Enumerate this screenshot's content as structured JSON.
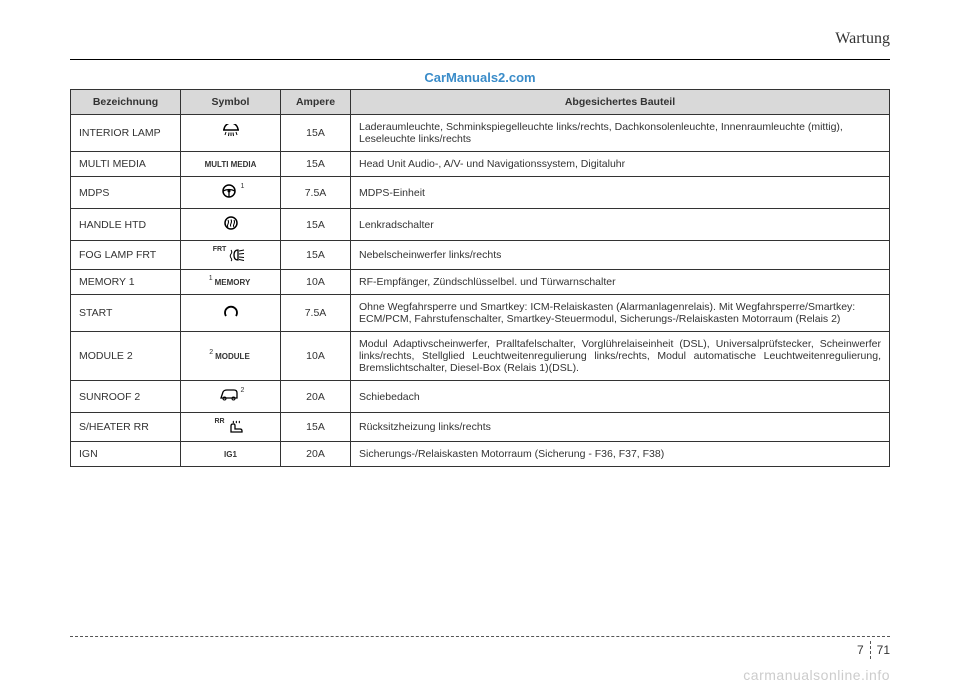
{
  "header": {
    "section": "Wartung"
  },
  "watermark": {
    "top": "CarManuals2.com",
    "bottom": "carmanualsonline.info"
  },
  "footer": {
    "chapter": "7",
    "page": "71"
  },
  "table": {
    "headers": {
      "name": "Bezeichnung",
      "symbol": "Symbol",
      "ampere": "Ampere",
      "component": "Abgesichertes Bauteil"
    },
    "rows": [
      {
        "name": "INTERIOR LAMP",
        "symbol_type": "svg_dome",
        "symbol_text": "",
        "ampere": "15A",
        "desc": "Laderaumleuchte, Schminkspiegelleuchte links/rechts, Dachkonsolenleuchte, Innenraumleuchte (mittig), Leseleuchte links/rechts",
        "justify": false
      },
      {
        "name": "MULTI MEDIA",
        "symbol_type": "text",
        "symbol_text": "MULTI MEDIA",
        "ampere": "15A",
        "desc": "Head Unit Audio-, A/V- und Navigationssystem, Digitaluhr",
        "justify": false
      },
      {
        "name": "MDPS",
        "symbol_type": "svg_steer",
        "symbol_text": "",
        "sup": "1",
        "ampere": "7.5A",
        "desc": "MDPS-Einheit",
        "justify": false
      },
      {
        "name": "HANDLE HTD",
        "symbol_type": "svg_heat_wheel",
        "symbol_text": "",
        "ampere": "15A",
        "desc": "Lenkradschalter",
        "justify": false
      },
      {
        "name": "FOG LAMP FRT",
        "symbol_type": "svg_fog",
        "symbol_text": "",
        "pre": "FRT",
        "ampere": "15A",
        "desc": "Nebelscheinwerfer links/rechts",
        "justify": false
      },
      {
        "name": "MEMORY 1",
        "symbol_type": "text_sup",
        "symbol_text": "MEMORY",
        "sup": "1",
        "ampere": "10A",
        "desc": "RF-Empfänger, Zündschlüsselbel. und Türwarnschalter",
        "justify": false
      },
      {
        "name": "START",
        "symbol_type": "svg_ring",
        "symbol_text": "",
        "ampere": "7.5A",
        "desc": "Ohne Wegfahrsperre und Smartkey: ICM-Relaiskasten (Alarmanlagenrelais). Mit Wegfahrsperre/Smartkey: ECM/PCM, Fahrstufenschalter, Smartkey-Steuermodul, Sicherungs-/Relaiskasten Motorraum (Relais 2)",
        "justify": false
      },
      {
        "name": "MODULE 2",
        "symbol_type": "text_sup",
        "symbol_text": "MODULE",
        "sup": "2",
        "ampere": "10A",
        "desc": "Modul Adaptivscheinwerfer, Pralltafelschalter, Vorglührelaiseinheit (DSL), Universalprüfstecker, Scheinwerfer links/rechts, Stellglied Leuchtweitenregulierung links/rechts, Modul automatische Leuchtweitenregulierung, Bremslichtschalter, Diesel-Box (Relais 1)(DSL).",
        "justify": true
      },
      {
        "name": "SUNROOF 2",
        "symbol_type": "svg_car",
        "symbol_text": "",
        "sup": "2",
        "ampere": "20A",
        "desc": "Schiebedach",
        "justify": false
      },
      {
        "name": "S/HEATER RR",
        "symbol_type": "svg_seat_heat",
        "symbol_text": "",
        "pre": "RR",
        "ampere": "15A",
        "desc": "Rücksitzheizung links/rechts",
        "justify": false
      },
      {
        "name": "IGN",
        "symbol_type": "text",
        "symbol_text": "IG1",
        "ampere": "20A",
        "desc": "Sicherungs-/Relaiskasten Motorraum (Sicherung - F36, F37, F38)",
        "justify": false
      }
    ]
  },
  "colors": {
    "header_bg": "#d9d9d9",
    "border": "#333333",
    "text": "#333333",
    "link_blue": "#3a8cc9",
    "watermark_gray": "#cccccc"
  }
}
